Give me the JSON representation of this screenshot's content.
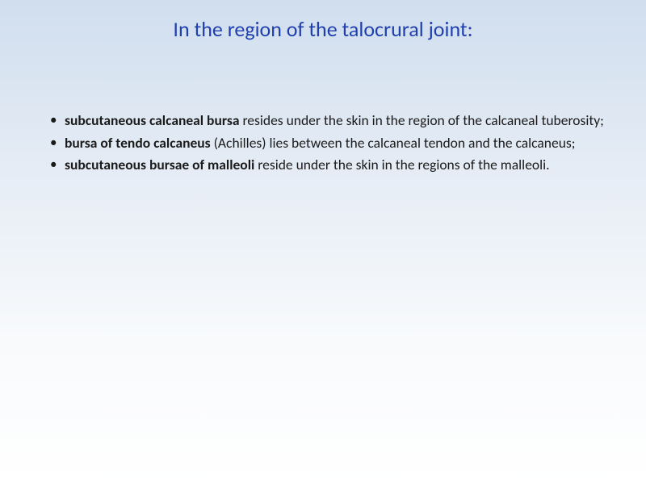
{
  "title": "In the region of the talocrural joint:",
  "title_color": "#1f3fb0",
  "title_fontsize": 26,
  "body_fontsize": 17.5,
  "body_color": "#1a1a1a",
  "background_gradient": [
    "#d0deee",
    "#e8eef6",
    "#f8fafc",
    "#ffffff"
  ],
  "bullets": [
    {
      "bold": "subcutaneous calcaneal bursa ",
      "rest": "resides under the skin in the region of the calcaneal tuberosity;"
    },
    {
      "bold": "bursa of tendo calcaneus ",
      "rest": "(Achilles) lies between the calcaneal tendon and the calcaneus;"
    },
    {
      "bold": "subcutaneous bursae of malleoli ",
      "rest": "reside under the skin in the regions of the malleoli."
    }
  ]
}
